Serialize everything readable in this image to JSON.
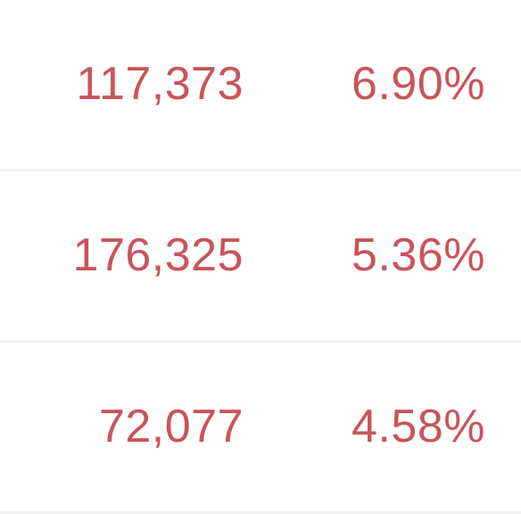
{
  "colors": {
    "value_text": "#c9545a",
    "divider": "#f1f1f3",
    "background": "#ffffff"
  },
  "rows": [
    {
      "volume": "117,373",
      "change": "6.90%"
    },
    {
      "volume": "176,325",
      "change": "5.36%"
    },
    {
      "volume": "72,077",
      "change": "4.58%"
    }
  ]
}
